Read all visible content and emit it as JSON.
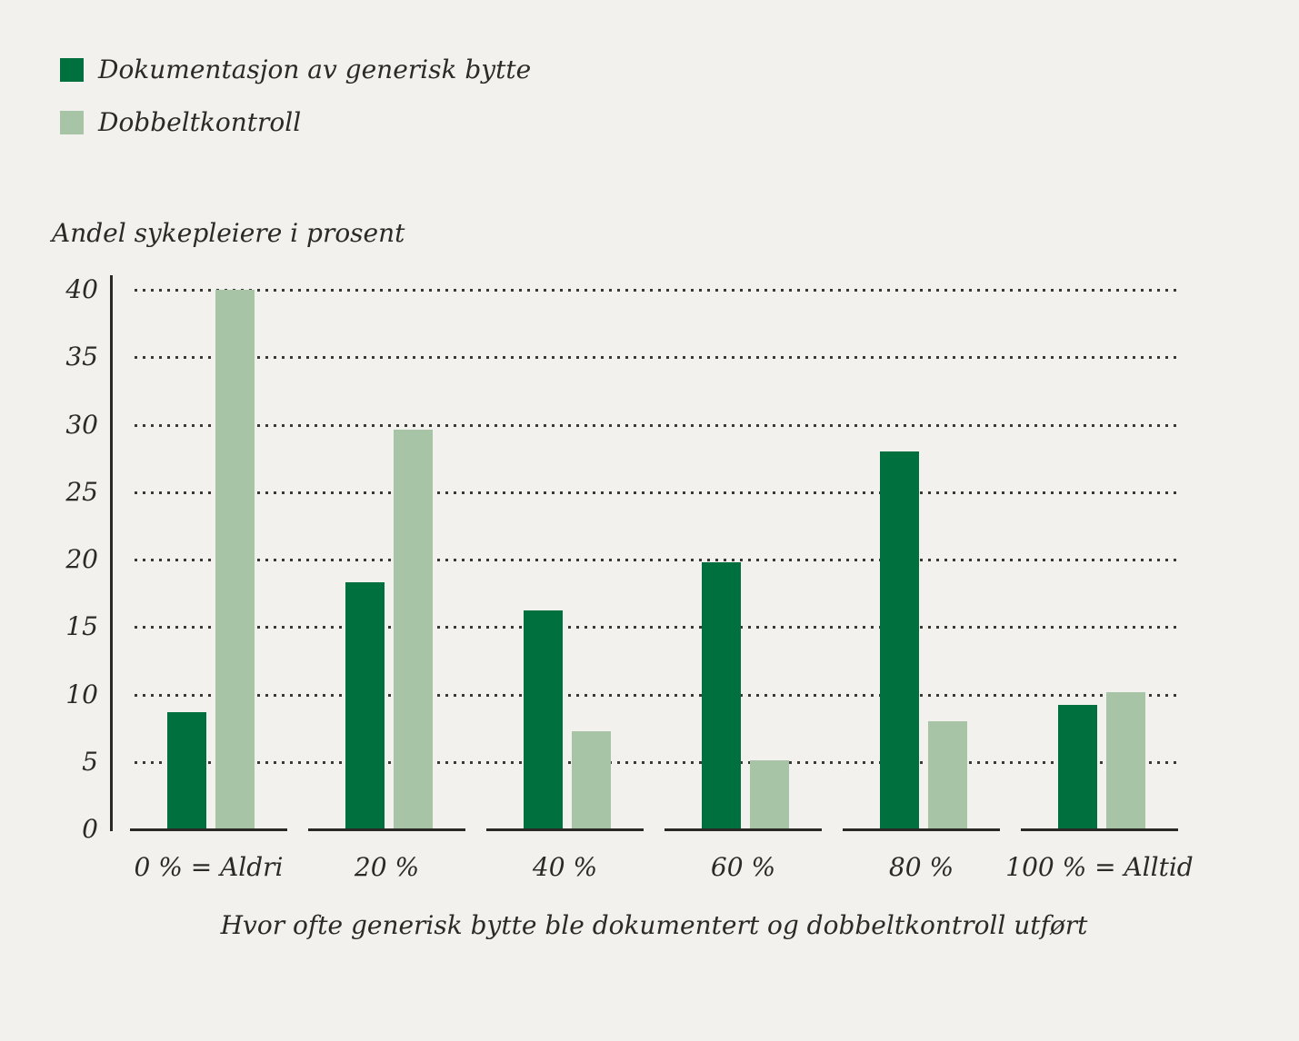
{
  "legend": {
    "items": [
      {
        "label": "Dokumentasjon av generisk bytte",
        "color": "#00713e"
      },
      {
        "label": "Dobbeltkontroll",
        "color": "#a7c4a7"
      }
    ]
  },
  "chart_data": {
    "type": "bar",
    "categories": [
      "0 % = Aldri",
      "20 %",
      "40 %",
      "60 %",
      "80 %",
      "100 % = Alltid"
    ],
    "series": [
      {
        "name": "Dokumentasjon av generisk bytte",
        "color": "#00713e",
        "values": [
          8.7,
          18.3,
          16.2,
          19.8,
          28.0,
          9.2
        ]
      },
      {
        "name": "Dobbeltkontroll",
        "color": "#a7c4a7",
        "values": [
          40.0,
          29.6,
          7.3,
          5.1,
          8.0,
          10.2
        ]
      }
    ],
    "title": "",
    "xlabel": "Hvor ofte generisk bytte ble dokumentert og dobbeltkontroll utført",
    "ylabel": "Andel sykepleiere i prosent",
    "ylim": [
      0,
      40
    ],
    "yticks": [
      0,
      5,
      10,
      15,
      20,
      25,
      30,
      35,
      40
    ],
    "grid": "dotted horizontal",
    "legend_position": "top-left"
  },
  "colors": {
    "background": "#f2f1ed",
    "axis": "#2a2925",
    "text": "#2c2a26"
  }
}
